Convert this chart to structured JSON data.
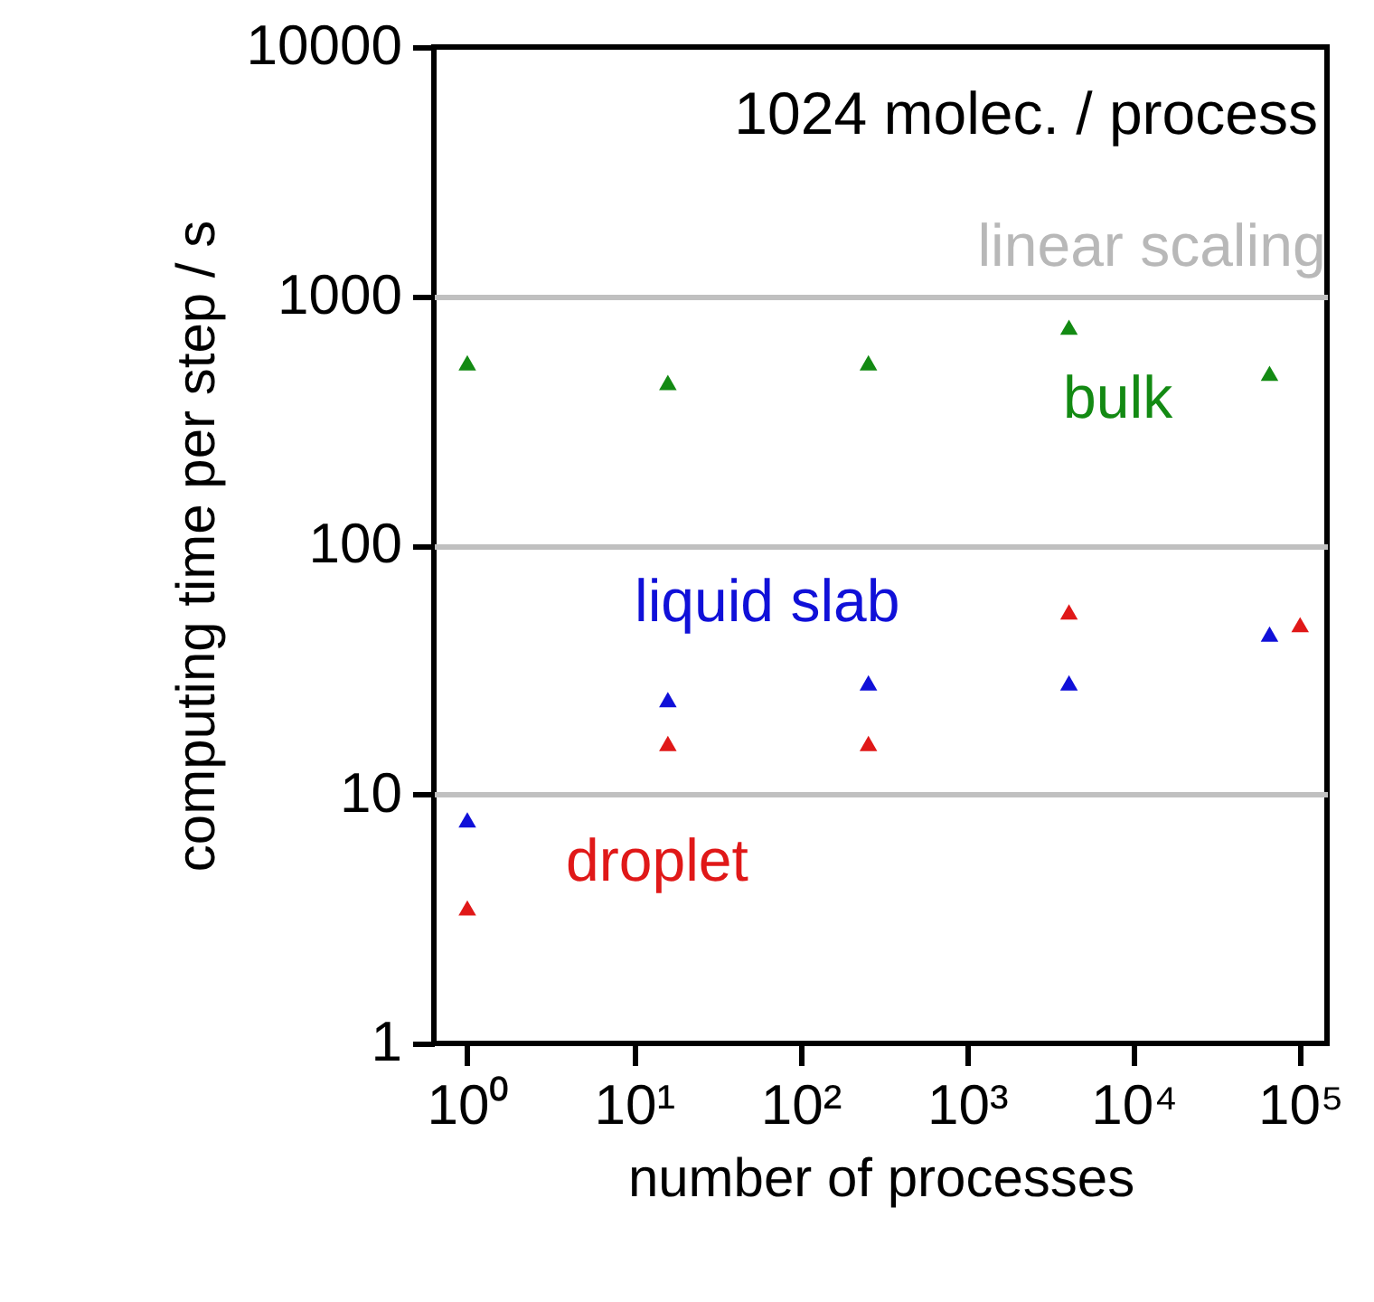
{
  "chart_data": {
    "type": "scatter",
    "xlabel": "number of processes",
    "ylabel": "computing time per step / s",
    "annotations": [
      "1024 molec. / process",
      "linear scaling"
    ],
    "x": [
      1,
      16,
      256,
      4096,
      65536
    ],
    "series": [
      {
        "name": "bulk",
        "color": "#138a13",
        "values": [
          540,
          450,
          540,
          750,
          490
        ]
      },
      {
        "name": "liquid slab",
        "color": "#1010d8",
        "values": [
          7.9,
          24,
          28,
          28,
          44
        ]
      },
      {
        "name": "droplet",
        "color": "#e01818",
        "x": [
          1,
          16,
          256,
          4096,
          100000
        ],
        "values": [
          3.5,
          16,
          16,
          54,
          48
        ]
      }
    ],
    "log": "xy",
    "xlim": [
      0.63,
      145000
    ],
    "ylim": [
      1,
      10000
    ],
    "xticks": [
      {
        "value": 1,
        "label": "10⁰"
      },
      {
        "value": 10,
        "label": "10¹"
      },
      {
        "value": 100,
        "label": "10²"
      },
      {
        "value": 1000,
        "label": "10³"
      },
      {
        "value": 10000,
        "label": "10⁴"
      },
      {
        "value": 100000,
        "label": "10⁵"
      }
    ],
    "yticks": [
      1,
      10,
      100,
      1000,
      10000
    ],
    "grid": "y",
    "marker": "triangle",
    "legend": false
  }
}
